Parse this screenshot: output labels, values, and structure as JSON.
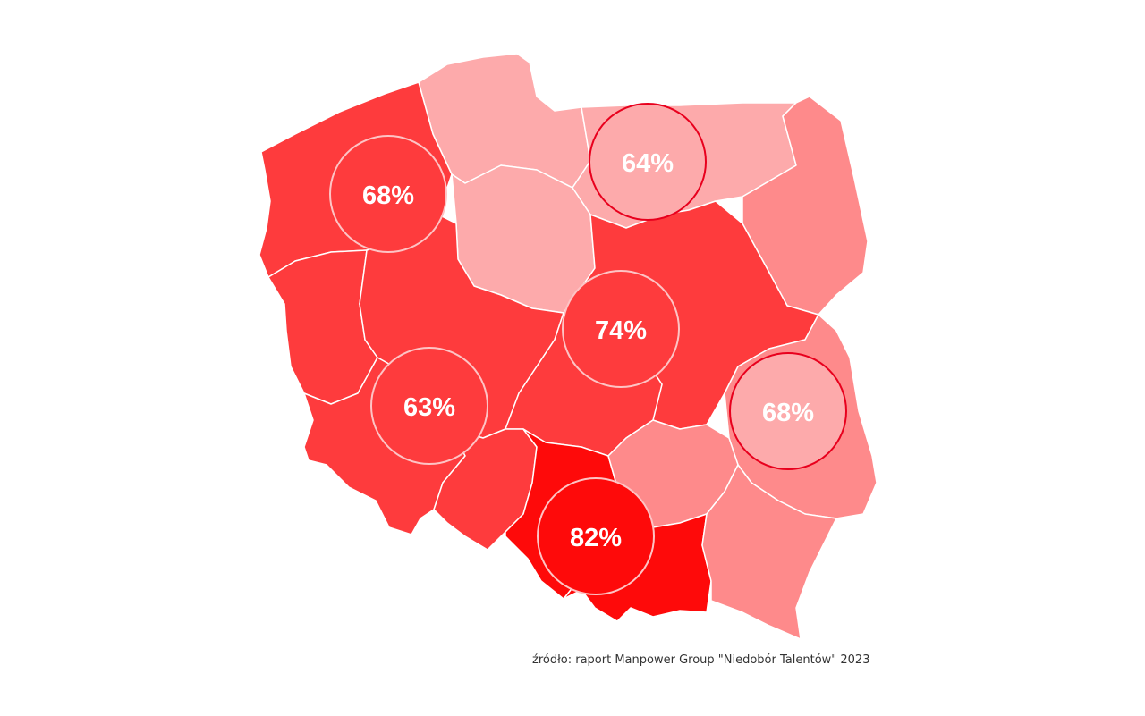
{
  "colors": {
    "light": "#fdaaab",
    "medium": "#fe8a8b",
    "strong": "#fe3b3d",
    "darkest": "#fe0a0a",
    "outline": "#e8001d"
  },
  "regions": [
    {
      "id": "pomorskie",
      "fill": "light"
    },
    {
      "id": "warminsko-mazurskie",
      "fill": "light"
    },
    {
      "id": "podlaskie",
      "fill": "medium"
    },
    {
      "id": "zachodniopomorskie",
      "fill": "strong"
    },
    {
      "id": "kujawsko-pomorskie",
      "fill": "light"
    },
    {
      "id": "lubuskie",
      "fill": "strong"
    },
    {
      "id": "wielkopolskie",
      "fill": "strong"
    },
    {
      "id": "mazowieckie",
      "fill": "strong"
    },
    {
      "id": "lodzkie",
      "fill": "strong"
    },
    {
      "id": "lubelskie",
      "fill": "medium"
    },
    {
      "id": "dolnoslaskie",
      "fill": "strong"
    },
    {
      "id": "opolskie",
      "fill": "strong"
    },
    {
      "id": "slaskie",
      "fill": "darkest"
    },
    {
      "id": "swietokrzyskie",
      "fill": "medium"
    },
    {
      "id": "malopolskie",
      "fill": "darkest"
    },
    {
      "id": "podkarpackie",
      "fill": "medium"
    }
  ],
  "bubbles": [
    {
      "id": "north-west",
      "label": "68%",
      "value": 68,
      "style": "white-ring"
    },
    {
      "id": "north",
      "label": "64%",
      "value": 64,
      "style": "red-ring"
    },
    {
      "id": "center",
      "label": "74%",
      "value": 74,
      "style": "white-ring"
    },
    {
      "id": "west",
      "label": "63%",
      "value": 63,
      "style": "white-ring"
    },
    {
      "id": "east",
      "label": "68%",
      "value": 68,
      "style": "red-ring"
    },
    {
      "id": "south",
      "label": "82%",
      "value": 82,
      "style": "white-ring"
    }
  ],
  "source_text": "źródło: raport Manpower Group \"Niedobór Talentów\" 2023"
}
